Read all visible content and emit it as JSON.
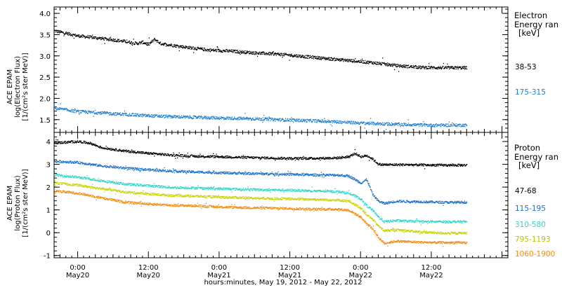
{
  "xaxis": {
    "caption": "hours:minutes, May 19, 2012 - May 22, 2012",
    "ticks": [
      {
        "hour": 24,
        "time": "0:00",
        "date": "May20"
      },
      {
        "hour": 36,
        "time": "12:00",
        "date": "May20"
      },
      {
        "hour": 48,
        "time": "0:00",
        "date": "May21"
      },
      {
        "hour": 60,
        "time": "12:00",
        "date": "May21"
      },
      {
        "hour": 72,
        "time": "0:00",
        "date": "May22"
      },
      {
        "hour": 84,
        "time": "12:00",
        "date": "May22"
      }
    ]
  },
  "electron_panel": {
    "ylabel": [
      "ACE EPAM",
      "log(Electron Flux)",
      "[1/(cm²s ster MeV)]"
    ],
    "legend_title": [
      "Electron",
      "Energy ran",
      "[keV]"
    ]
  },
  "proton_panel": {
    "ylabel": [
      "ACE EPAM",
      "log(Proton Flux)",
      "[1/(cm²s ster MeV)]"
    ],
    "legend_title": [
      "Proton",
      "Energy ran",
      "[keV]"
    ]
  },
  "chart_data": [
    {
      "type": "scatter",
      "panel": "electron",
      "x_unit": "hours from 2012-05-19 00:00 UT",
      "xlim": [
        20,
        97
      ],
      "ylim": [
        1.2,
        4.15
      ],
      "yticks": [
        1.5,
        2.0,
        2.5,
        3.0,
        3.5,
        4.0
      ],
      "grid": false,
      "legend_position": "right",
      "series": [
        {
          "name": "38-53",
          "color": "#000000",
          "x": [
            20,
            24,
            28,
            32,
            34,
            35,
            36,
            37,
            38,
            42,
            46,
            50,
            54,
            58,
            62,
            66,
            70,
            74,
            78,
            82,
            86,
            90
          ],
          "y": [
            3.6,
            3.48,
            3.42,
            3.35,
            3.3,
            3.33,
            3.28,
            3.4,
            3.3,
            3.22,
            3.15,
            3.12,
            3.08,
            3.05,
            3.0,
            2.95,
            2.9,
            2.85,
            2.78,
            2.74,
            2.73,
            2.73
          ]
        },
        {
          "name": "175-315",
          "color": "#1f7fd0",
          "x": [
            20,
            24,
            30,
            36,
            42,
            48,
            54,
            60,
            66,
            72,
            78,
            84,
            90
          ],
          "y": [
            1.78,
            1.7,
            1.65,
            1.6,
            1.57,
            1.55,
            1.53,
            1.5,
            1.47,
            1.43,
            1.4,
            1.38,
            1.38
          ]
        }
      ]
    },
    {
      "type": "scatter",
      "panel": "proton",
      "x_unit": "hours from 2012-05-19 00:00 UT",
      "xlim": [
        20,
        97
      ],
      "ylim": [
        -1.1,
        4.4
      ],
      "yticks": [
        -1,
        0,
        1,
        2,
        3,
        4
      ],
      "grid": false,
      "legend_position": "right",
      "series": [
        {
          "name": "47-68",
          "color": "#000000",
          "x": [
            20,
            24,
            26,
            28,
            32,
            36,
            40,
            44,
            48,
            52,
            56,
            60,
            64,
            68,
            70,
            71,
            72,
            73,
            74,
            75,
            76,
            80,
            84,
            90
          ],
          "y": [
            3.95,
            4.02,
            3.95,
            3.75,
            3.6,
            3.5,
            3.42,
            3.37,
            3.35,
            3.32,
            3.3,
            3.28,
            3.28,
            3.3,
            3.35,
            3.5,
            3.35,
            3.4,
            3.25,
            3.02,
            3.0,
            3.0,
            2.98,
            2.98
          ]
        },
        {
          "name": "115-195",
          "color": "#1c70c9",
          "x": [
            20,
            24,
            28,
            32,
            36,
            40,
            44,
            48,
            52,
            56,
            60,
            64,
            68,
            70,
            72,
            73,
            74,
            75,
            76,
            78,
            82,
            86,
            90
          ],
          "y": [
            3.15,
            3.1,
            2.95,
            2.85,
            2.78,
            2.72,
            2.68,
            2.65,
            2.62,
            2.6,
            2.58,
            2.55,
            2.55,
            2.5,
            2.2,
            2.35,
            1.7,
            1.4,
            1.3,
            1.4,
            1.38,
            1.35,
            1.35
          ]
        },
        {
          "name": "310-580",
          "color": "#2fd6c8",
          "x": [
            20,
            24,
            28,
            32,
            36,
            40,
            44,
            48,
            52,
            56,
            60,
            64,
            68,
            70,
            72,
            73,
            74,
            75,
            76,
            78,
            82,
            86,
            90
          ],
          "y": [
            2.55,
            2.45,
            2.3,
            2.15,
            2.08,
            2.0,
            1.98,
            1.95,
            1.92,
            1.9,
            1.88,
            1.85,
            1.82,
            1.75,
            1.5,
            1.2,
            1.0,
            0.7,
            0.5,
            0.55,
            0.5,
            0.5,
            0.5
          ]
        },
        {
          "name": "795-1193",
          "color": "#c8d400",
          "x": [
            20,
            24,
            28,
            32,
            36,
            40,
            44,
            48,
            52,
            56,
            60,
            64,
            68,
            70,
            72,
            73,
            74,
            75,
            76,
            78,
            82,
            86,
            90
          ],
          "y": [
            2.2,
            2.1,
            1.95,
            1.8,
            1.72,
            1.65,
            1.62,
            1.58,
            1.55,
            1.52,
            1.5,
            1.48,
            1.45,
            1.4,
            1.1,
            0.8,
            0.6,
            0.3,
            0.1,
            0.15,
            0.05,
            0.0,
            0.0
          ]
        },
        {
          "name": "1060-1900",
          "color": "#f08c10",
          "x": [
            20,
            24,
            28,
            32,
            36,
            40,
            44,
            48,
            52,
            56,
            60,
            64,
            68,
            70,
            72,
            73,
            74,
            75,
            76,
            78,
            82,
            86,
            90
          ],
          "y": [
            1.85,
            1.75,
            1.55,
            1.35,
            1.28,
            1.22,
            1.2,
            1.15,
            1.12,
            1.1,
            1.08,
            1.05,
            1.05,
            1.0,
            0.7,
            0.4,
            0.2,
            -0.2,
            -0.45,
            -0.35,
            -0.4,
            -0.42,
            -0.42
          ]
        }
      ]
    }
  ]
}
